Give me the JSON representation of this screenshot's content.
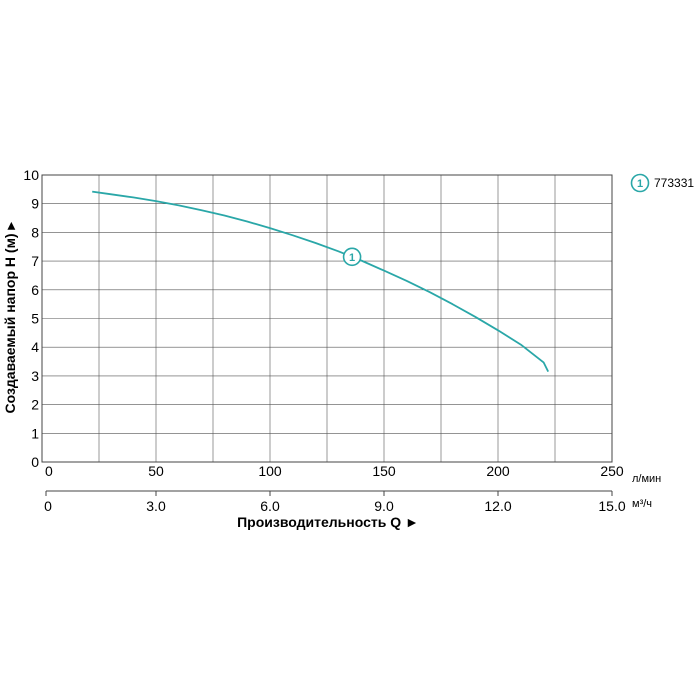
{
  "chart_data": {
    "type": "line",
    "title": "",
    "ylabel": "Создаваемый напор H (м) ▸",
    "xlabel": "Производительность Q ►",
    "x_unit_primary": "л/мин",
    "x_unit_secondary": "м³/ч",
    "xlim": [
      0,
      250
    ],
    "ylim": [
      0,
      10
    ],
    "grid": true,
    "y_ticks": [
      "0",
      "1",
      "2",
      "3",
      "4",
      "5",
      "6",
      "7",
      "8",
      "9",
      "10"
    ],
    "x_ticks_primary": [
      "0",
      "50",
      "100",
      "150",
      "200",
      "250"
    ],
    "x_ticks_primary_values": [
      0,
      50,
      100,
      150,
      200,
      250
    ],
    "x_ticks_secondary": [
      "0",
      "3.0",
      "6.0",
      "9.0",
      "12.0",
      "15.0"
    ],
    "x_ticks_secondary_values": [
      0,
      50,
      100,
      150,
      200,
      250
    ],
    "x_grid_values": [
      0,
      25,
      50,
      75,
      100,
      125,
      150,
      175,
      200,
      225,
      250
    ],
    "series": [
      {
        "name": "773331",
        "marker_label": "1",
        "color": "#2aa7a8",
        "x": [
          22,
          30,
          40,
          50,
          60,
          70,
          80,
          90,
          100,
          110,
          120,
          130,
          140,
          150,
          160,
          170,
          180,
          190,
          200,
          210,
          220,
          222
        ],
        "y": [
          9.42,
          9.33,
          9.22,
          9.09,
          8.94,
          8.77,
          8.59,
          8.38,
          8.15,
          7.9,
          7.63,
          7.34,
          7.02,
          6.67,
          6.31,
          5.92,
          5.5,
          5.06,
          4.59,
          4.09,
          3.47,
          3.15
        ]
      }
    ]
  }
}
